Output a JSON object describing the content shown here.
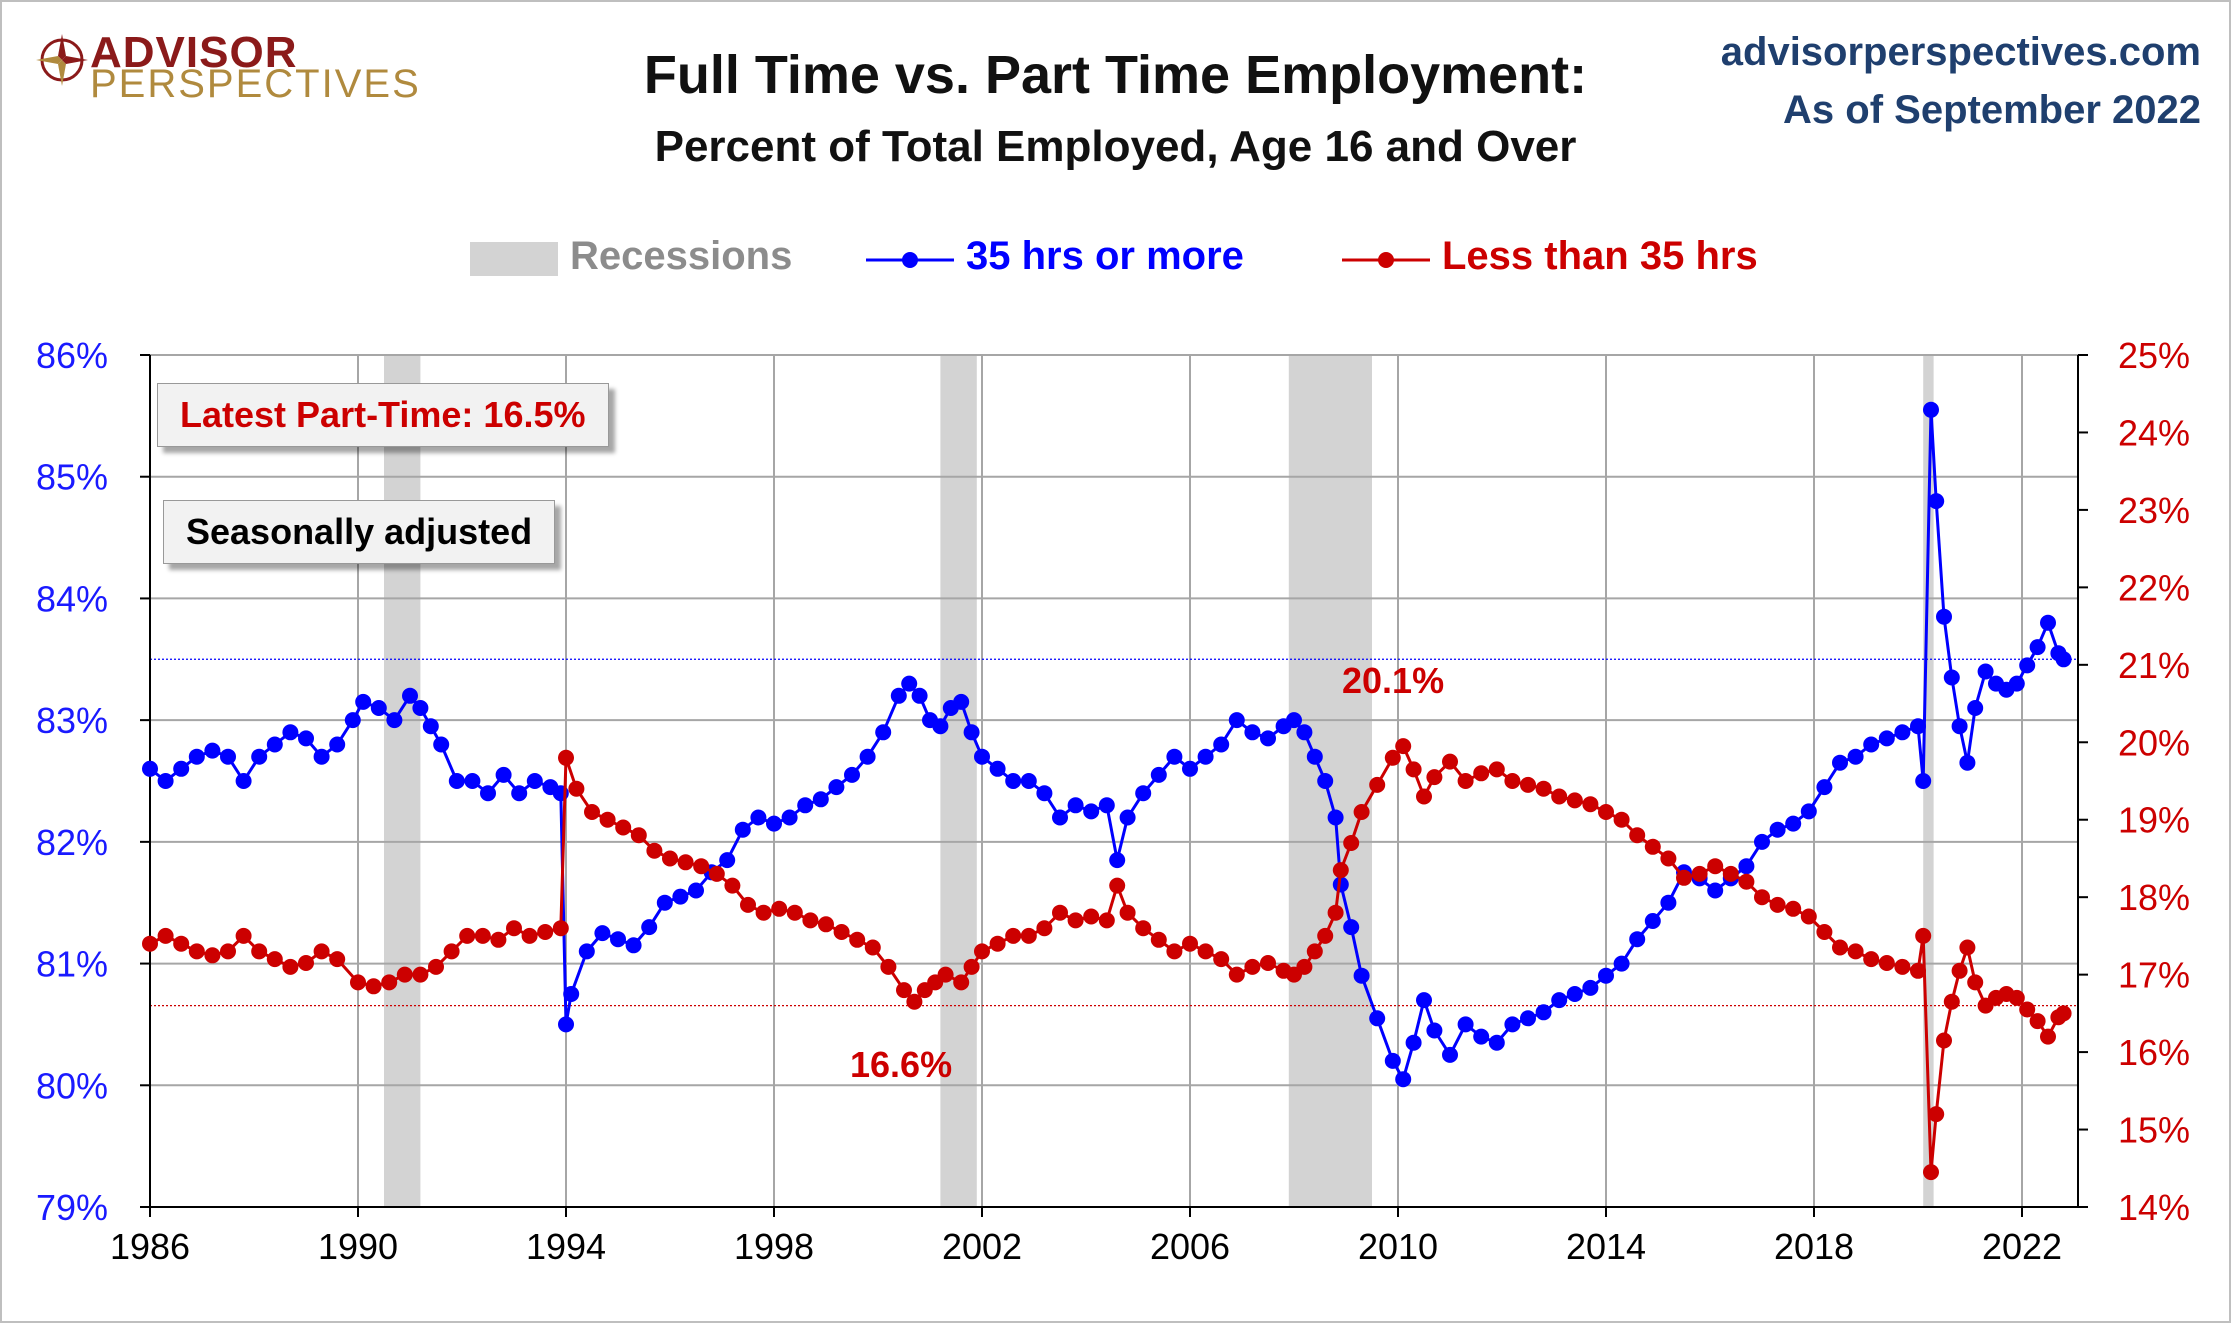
{
  "brand": {
    "logo_line1": "ADVISOR",
    "logo_line2": "PERSPECTIVES",
    "site": "advisorperspectives.com",
    "as_of": "As of September 2022"
  },
  "colors": {
    "full_time": "#0000ff",
    "part_time": "#cc0000",
    "recession": "#d3d3d3",
    "left_axis": "#1a1aff",
    "right_axis": "#cc0000",
    "site_text": "#1f3f6e"
  },
  "callouts": {
    "latest_part_time": "Latest Part-Time: 16.5%",
    "seasonally_adjusted": "Seasonally adjusted"
  },
  "annotations": {
    "part_time_high": "20.1%",
    "part_time_low": "16.6%"
  },
  "chart_data": {
    "type": "line",
    "title": "Full Time vs. Part Time Employment:",
    "subtitle": "Percent of Total Employed, Age 16 and Over",
    "legend": [
      "Recessions",
      "35 hrs or more",
      "Less than 35 hrs"
    ],
    "legend_position": "top-center",
    "grid": true,
    "x_ticks": [
      "1986",
      "1990",
      "1994",
      "1998",
      "2002",
      "2006",
      "2010",
      "2014",
      "2018",
      "2022"
    ],
    "xlim": [
      1986,
      2023
    ],
    "y_left_ticks": [
      "79%",
      "80%",
      "81%",
      "82%",
      "83%",
      "84%",
      "85%",
      "86%"
    ],
    "y_left_lim": [
      79,
      86
    ],
    "y_right_ticks": [
      "14%",
      "15%",
      "16%",
      "17%",
      "18%",
      "19%",
      "20%",
      "21%",
      "22%",
      "23%",
      "24%",
      "25%"
    ],
    "y_right_lim": [
      14,
      25
    ],
    "recessions": [
      [
        1990.5,
        1991.2
      ],
      [
        2001.2,
        2001.9
      ],
      [
        2007.9,
        2009.5
      ],
      [
        2020.1,
        2020.3
      ]
    ],
    "reference_lines": {
      "full_time": 83.5,
      "part_time": 16.6
    },
    "series": [
      {
        "name": "35 hrs or more",
        "axis": "left",
        "points": [
          [
            1986.0,
            82.6
          ],
          [
            1986.3,
            82.5
          ],
          [
            1986.6,
            82.6
          ],
          [
            1986.9,
            82.7
          ],
          [
            1987.2,
            82.75
          ],
          [
            1987.5,
            82.7
          ],
          [
            1987.8,
            82.5
          ],
          [
            1988.1,
            82.7
          ],
          [
            1988.4,
            82.8
          ],
          [
            1988.7,
            82.9
          ],
          [
            1989.0,
            82.85
          ],
          [
            1989.3,
            82.7
          ],
          [
            1989.6,
            82.8
          ],
          [
            1989.9,
            83.0
          ],
          [
            1990.1,
            83.15
          ],
          [
            1990.4,
            83.1
          ],
          [
            1990.7,
            83.0
          ],
          [
            1991.0,
            83.2
          ],
          [
            1991.2,
            83.1
          ],
          [
            1991.4,
            82.95
          ],
          [
            1991.6,
            82.8
          ],
          [
            1991.9,
            82.5
          ],
          [
            1992.2,
            82.5
          ],
          [
            1992.5,
            82.4
          ],
          [
            1992.8,
            82.55
          ],
          [
            1993.1,
            82.4
          ],
          [
            1993.4,
            82.5
          ],
          [
            1993.7,
            82.45
          ],
          [
            1993.9,
            82.4
          ],
          [
            1994.0,
            80.5
          ],
          [
            1994.1,
            80.75
          ],
          [
            1994.4,
            81.1
          ],
          [
            1994.7,
            81.25
          ],
          [
            1995.0,
            81.2
          ],
          [
            1995.3,
            81.15
          ],
          [
            1995.6,
            81.3
          ],
          [
            1995.9,
            81.5
          ],
          [
            1996.2,
            81.55
          ],
          [
            1996.5,
            81.6
          ],
          [
            1996.8,
            81.75
          ],
          [
            1997.1,
            81.85
          ],
          [
            1997.4,
            82.1
          ],
          [
            1997.7,
            82.2
          ],
          [
            1998.0,
            82.15
          ],
          [
            1998.3,
            82.2
          ],
          [
            1998.6,
            82.3
          ],
          [
            1998.9,
            82.35
          ],
          [
            1999.2,
            82.45
          ],
          [
            1999.5,
            82.55
          ],
          [
            1999.8,
            82.7
          ],
          [
            2000.1,
            82.9
          ],
          [
            2000.4,
            83.2
          ],
          [
            2000.6,
            83.3
          ],
          [
            2000.8,
            83.2
          ],
          [
            2001.0,
            83.0
          ],
          [
            2001.2,
            82.95
          ],
          [
            2001.4,
            83.1
          ],
          [
            2001.6,
            83.15
          ],
          [
            2001.8,
            82.9
          ],
          [
            2002.0,
            82.7
          ],
          [
            2002.3,
            82.6
          ],
          [
            2002.6,
            82.5
          ],
          [
            2002.9,
            82.5
          ],
          [
            2003.2,
            82.4
          ],
          [
            2003.5,
            82.2
          ],
          [
            2003.8,
            82.3
          ],
          [
            2004.1,
            82.25
          ],
          [
            2004.4,
            82.3
          ],
          [
            2004.6,
            81.85
          ],
          [
            2004.8,
            82.2
          ],
          [
            2005.1,
            82.4
          ],
          [
            2005.4,
            82.55
          ],
          [
            2005.7,
            82.7
          ],
          [
            2006.0,
            82.6
          ],
          [
            2006.3,
            82.7
          ],
          [
            2006.6,
            82.8
          ],
          [
            2006.9,
            83.0
          ],
          [
            2007.2,
            82.9
          ],
          [
            2007.5,
            82.85
          ],
          [
            2007.8,
            82.95
          ],
          [
            2008.0,
            83.0
          ],
          [
            2008.2,
            82.9
          ],
          [
            2008.4,
            82.7
          ],
          [
            2008.6,
            82.5
          ],
          [
            2008.8,
            82.2
          ],
          [
            2008.9,
            81.65
          ],
          [
            2009.1,
            81.3
          ],
          [
            2009.3,
            80.9
          ],
          [
            2009.6,
            80.55
          ],
          [
            2009.9,
            80.2
          ],
          [
            2010.1,
            80.05
          ],
          [
            2010.3,
            80.35
          ],
          [
            2010.5,
            80.7
          ],
          [
            2010.7,
            80.45
          ],
          [
            2011.0,
            80.25
          ],
          [
            2011.3,
            80.5
          ],
          [
            2011.6,
            80.4
          ],
          [
            2011.9,
            80.35
          ],
          [
            2012.2,
            80.5
          ],
          [
            2012.5,
            80.55
          ],
          [
            2012.8,
            80.6
          ],
          [
            2013.1,
            80.7
          ],
          [
            2013.4,
            80.75
          ],
          [
            2013.7,
            80.8
          ],
          [
            2014.0,
            80.9
          ],
          [
            2014.3,
            81.0
          ],
          [
            2014.6,
            81.2
          ],
          [
            2014.9,
            81.35
          ],
          [
            2015.2,
            81.5
          ],
          [
            2015.5,
            81.75
          ],
          [
            2015.8,
            81.7
          ],
          [
            2016.1,
            81.6
          ],
          [
            2016.4,
            81.7
          ],
          [
            2016.7,
            81.8
          ],
          [
            2017.0,
            82.0
          ],
          [
            2017.3,
            82.1
          ],
          [
            2017.6,
            82.15
          ],
          [
            2017.9,
            82.25
          ],
          [
            2018.2,
            82.45
          ],
          [
            2018.5,
            82.65
          ],
          [
            2018.8,
            82.7
          ],
          [
            2019.1,
            82.8
          ],
          [
            2019.4,
            82.85
          ],
          [
            2019.7,
            82.9
          ],
          [
            2020.0,
            82.95
          ],
          [
            2020.1,
            82.5
          ],
          [
            2020.25,
            85.55
          ],
          [
            2020.35,
            84.8
          ],
          [
            2020.5,
            83.85
          ],
          [
            2020.65,
            83.35
          ],
          [
            2020.8,
            82.95
          ],
          [
            2020.95,
            82.65
          ],
          [
            2021.1,
            83.1
          ],
          [
            2021.3,
            83.4
          ],
          [
            2021.5,
            83.3
          ],
          [
            2021.7,
            83.25
          ],
          [
            2021.9,
            83.3
          ],
          [
            2022.1,
            83.45
          ],
          [
            2022.3,
            83.6
          ],
          [
            2022.5,
            83.8
          ],
          [
            2022.7,
            83.55
          ],
          [
            2022.8,
            83.5
          ]
        ]
      },
      {
        "name": "Less than 35 hrs",
        "axis": "right",
        "points": [
          [
            1986.0,
            17.4
          ],
          [
            1986.3,
            17.5
          ],
          [
            1986.6,
            17.4
          ],
          [
            1986.9,
            17.3
          ],
          [
            1987.2,
            17.25
          ],
          [
            1987.5,
            17.3
          ],
          [
            1987.8,
            17.5
          ],
          [
            1988.1,
            17.3
          ],
          [
            1988.4,
            17.2
          ],
          [
            1988.7,
            17.1
          ],
          [
            1989.0,
            17.15
          ],
          [
            1989.3,
            17.3
          ],
          [
            1989.6,
            17.2
          ],
          [
            1990.0,
            16.9
          ],
          [
            1990.3,
            16.85
          ],
          [
            1990.6,
            16.9
          ],
          [
            1990.9,
            17.0
          ],
          [
            1991.2,
            17.0
          ],
          [
            1991.5,
            17.1
          ],
          [
            1991.8,
            17.3
          ],
          [
            1992.1,
            17.5
          ],
          [
            1992.4,
            17.5
          ],
          [
            1992.7,
            17.45
          ],
          [
            1993.0,
            17.6
          ],
          [
            1993.3,
            17.5
          ],
          [
            1993.6,
            17.55
          ],
          [
            1993.9,
            17.6
          ],
          [
            1994.0,
            19.8
          ],
          [
            1994.2,
            19.4
          ],
          [
            1994.5,
            19.1
          ],
          [
            1994.8,
            19.0
          ],
          [
            1995.1,
            18.9
          ],
          [
            1995.4,
            18.8
          ],
          [
            1995.7,
            18.6
          ],
          [
            1996.0,
            18.5
          ],
          [
            1996.3,
            18.45
          ],
          [
            1996.6,
            18.4
          ],
          [
            1996.9,
            18.3
          ],
          [
            1997.2,
            18.15
          ],
          [
            1997.5,
            17.9
          ],
          [
            1997.8,
            17.8
          ],
          [
            1998.1,
            17.85
          ],
          [
            1998.4,
            17.8
          ],
          [
            1998.7,
            17.7
          ],
          [
            1999.0,
            17.65
          ],
          [
            1999.3,
            17.55
          ],
          [
            1999.6,
            17.45
          ],
          [
            1999.9,
            17.35
          ],
          [
            2000.2,
            17.1
          ],
          [
            2000.5,
            16.8
          ],
          [
            2000.7,
            16.65
          ],
          [
            2000.9,
            16.8
          ],
          [
            2001.1,
            16.9
          ],
          [
            2001.3,
            17.0
          ],
          [
            2001.6,
            16.9
          ],
          [
            2001.8,
            17.1
          ],
          [
            2002.0,
            17.3
          ],
          [
            2002.3,
            17.4
          ],
          [
            2002.6,
            17.5
          ],
          [
            2002.9,
            17.5
          ],
          [
            2003.2,
            17.6
          ],
          [
            2003.5,
            17.8
          ],
          [
            2003.8,
            17.7
          ],
          [
            2004.1,
            17.75
          ],
          [
            2004.4,
            17.7
          ],
          [
            2004.6,
            18.15
          ],
          [
            2004.8,
            17.8
          ],
          [
            2005.1,
            17.6
          ],
          [
            2005.4,
            17.45
          ],
          [
            2005.7,
            17.3
          ],
          [
            2006.0,
            17.4
          ],
          [
            2006.3,
            17.3
          ],
          [
            2006.6,
            17.2
          ],
          [
            2006.9,
            17.0
          ],
          [
            2007.2,
            17.1
          ],
          [
            2007.5,
            17.15
          ],
          [
            2007.8,
            17.05
          ],
          [
            2008.0,
            17.0
          ],
          [
            2008.2,
            17.1
          ],
          [
            2008.4,
            17.3
          ],
          [
            2008.6,
            17.5
          ],
          [
            2008.8,
            17.8
          ],
          [
            2008.9,
            18.35
          ],
          [
            2009.1,
            18.7
          ],
          [
            2009.3,
            19.1
          ],
          [
            2009.6,
            19.45
          ],
          [
            2009.9,
            19.8
          ],
          [
            2010.1,
            19.95
          ],
          [
            2010.3,
            19.65
          ],
          [
            2010.5,
            19.3
          ],
          [
            2010.7,
            19.55
          ],
          [
            2011.0,
            19.75
          ],
          [
            2011.3,
            19.5
          ],
          [
            2011.6,
            19.6
          ],
          [
            2011.9,
            19.65
          ],
          [
            2012.2,
            19.5
          ],
          [
            2012.5,
            19.45
          ],
          [
            2012.8,
            19.4
          ],
          [
            2013.1,
            19.3
          ],
          [
            2013.4,
            19.25
          ],
          [
            2013.7,
            19.2
          ],
          [
            2014.0,
            19.1
          ],
          [
            2014.3,
            19.0
          ],
          [
            2014.6,
            18.8
          ],
          [
            2014.9,
            18.65
          ],
          [
            2015.2,
            18.5
          ],
          [
            2015.5,
            18.25
          ],
          [
            2015.8,
            18.3
          ],
          [
            2016.1,
            18.4
          ],
          [
            2016.4,
            18.3
          ],
          [
            2016.7,
            18.2
          ],
          [
            2017.0,
            18.0
          ],
          [
            2017.3,
            17.9
          ],
          [
            2017.6,
            17.85
          ],
          [
            2017.9,
            17.75
          ],
          [
            2018.2,
            17.55
          ],
          [
            2018.5,
            17.35
          ],
          [
            2018.8,
            17.3
          ],
          [
            2019.1,
            17.2
          ],
          [
            2019.4,
            17.15
          ],
          [
            2019.7,
            17.1
          ],
          [
            2020.0,
            17.05
          ],
          [
            2020.1,
            17.5
          ],
          [
            2020.25,
            14.45
          ],
          [
            2020.35,
            15.2
          ],
          [
            2020.5,
            16.15
          ],
          [
            2020.65,
            16.65
          ],
          [
            2020.8,
            17.05
          ],
          [
            2020.95,
            17.35
          ],
          [
            2021.1,
            16.9
          ],
          [
            2021.3,
            16.6
          ],
          [
            2021.5,
            16.7
          ],
          [
            2021.7,
            16.75
          ],
          [
            2021.9,
            16.7
          ],
          [
            2022.1,
            16.55
          ],
          [
            2022.3,
            16.4
          ],
          [
            2022.5,
            16.2
          ],
          [
            2022.7,
            16.45
          ],
          [
            2022.8,
            16.5
          ]
        ]
      }
    ]
  }
}
